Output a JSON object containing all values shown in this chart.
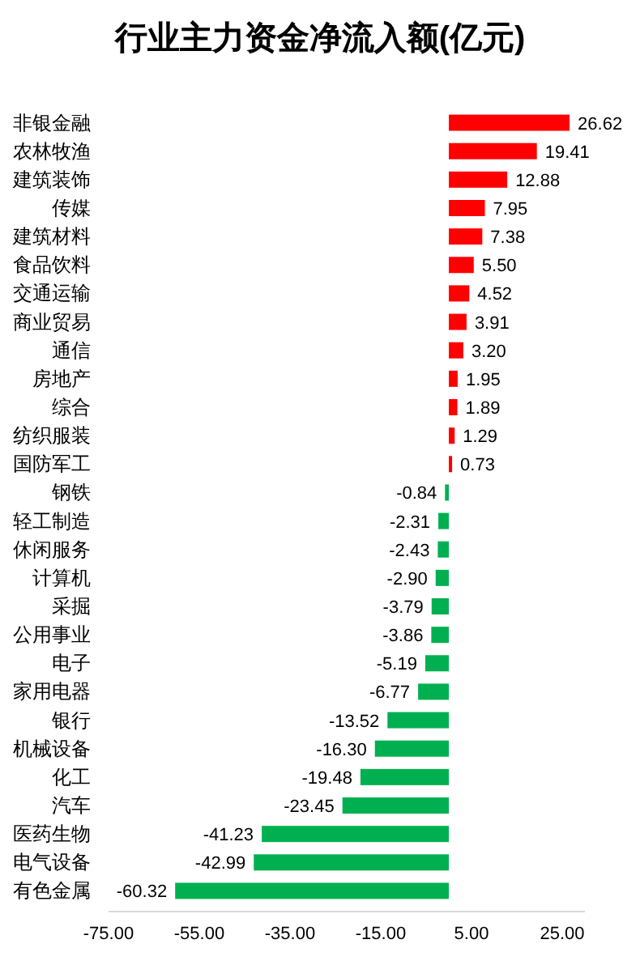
{
  "chart_data": {
    "type": "bar",
    "orientation": "horizontal",
    "title": "行业主力资金净流入额(亿元)",
    "categories": [
      "非银金融",
      "农林牧渔",
      "建筑装饰",
      "传媒",
      "建筑材料",
      "食品饮料",
      "交通运输",
      "商业贸易",
      "通信",
      "房地产",
      "综合",
      "纺织服装",
      "国防军工",
      "钢铁",
      "轻工制造",
      "休闲服务",
      "计算机",
      "采掘",
      "公用事业",
      "电子",
      "家用电器",
      "银行",
      "机械设备",
      "化工",
      "汽车",
      "医药生物",
      "电气设备",
      "有色金属"
    ],
    "values": [
      26.62,
      19.41,
      12.88,
      7.95,
      7.38,
      5.5,
      4.52,
      3.91,
      3.2,
      1.95,
      1.89,
      1.29,
      0.73,
      -0.84,
      -2.31,
      -2.43,
      -2.9,
      -3.79,
      -3.86,
      -5.19,
      -6.77,
      -13.52,
      -16.3,
      -19.48,
      -23.45,
      -41.23,
      -42.99,
      -60.32
    ],
    "value_labels": [
      "26.62",
      "19.41",
      "12.88",
      "7.95",
      "7.38",
      "5.50",
      "4.52",
      "3.91",
      "3.20",
      "1.95",
      "1.89",
      "1.29",
      "0.73",
      "-0.84",
      "-2.31",
      "-2.43",
      "-2.90",
      "-3.79",
      "-3.86",
      "-5.19",
      "-6.77",
      "-13.52",
      "-16.30",
      "-19.48",
      "-23.45",
      "-41.23",
      "-42.99",
      "-60.32"
    ],
    "colors": [
      "#ff0000",
      "#ff0000",
      "#ff0000",
      "#ff0000",
      "#ff0000",
      "#ff0000",
      "#ff0000",
      "#ff0000",
      "#ff0000",
      "#ff0000",
      "#ff0000",
      "#ff0000",
      "#ff0000",
      "#00b050",
      "#00b050",
      "#00b050",
      "#00b050",
      "#00b050",
      "#00b050",
      "#00b050",
      "#00b050",
      "#00b050",
      "#00b050",
      "#00b050",
      "#00b050",
      "#00b050",
      "#00b050",
      "#00b050"
    ],
    "xlim": [
      -75,
      30
    ],
    "xticks": [
      {
        "value": -75,
        "label": "-75.00"
      },
      {
        "value": -55,
        "label": "-55.00"
      },
      {
        "value": -35,
        "label": "-35.00"
      },
      {
        "value": -15,
        "label": "-15.00"
      },
      {
        "value": 5,
        "label": "5.00"
      },
      {
        "value": 25,
        "label": "25.00"
      }
    ],
    "grid": false
  }
}
